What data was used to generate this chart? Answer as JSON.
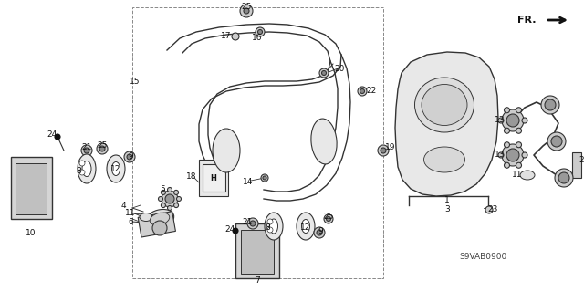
{
  "bg_color": "#ffffff",
  "diagram_code": "S9VAB0900",
  "line_color": "#333333",
  "gray": "#888888",
  "light_gray": "#cccccc",
  "dark": "#111111"
}
